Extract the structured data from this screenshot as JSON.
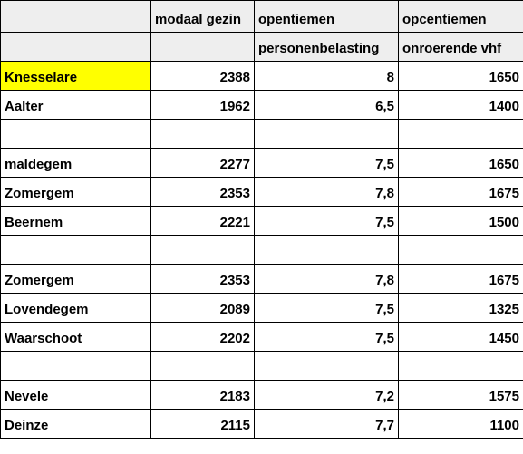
{
  "header_row1": [
    "",
    "modaal gezin",
    "opentiemen",
    "opcentiemen"
  ],
  "header_row2": [
    "",
    "",
    "personenbelasting",
    "onroerende vhf"
  ],
  "rows": [
    {
      "name": "Knesselare",
      "modaal": "2388",
      "pb": "8",
      "ovhf": "1650",
      "highlight": true
    },
    {
      "name": "Aalter",
      "modaal": "1962",
      "pb": "6,5",
      "ovhf": "1400"
    },
    {
      "name": "",
      "modaal": "",
      "pb": "",
      "ovhf": ""
    },
    {
      "name": "maldegem",
      "modaal": "2277",
      "pb": "7,5",
      "ovhf": "1650"
    },
    {
      "name": "Zomergem",
      "modaal": "2353",
      "pb": "7,8",
      "ovhf": "1675"
    },
    {
      "name": "Beernem",
      "modaal": "2221",
      "pb": "7,5",
      "ovhf": "1500"
    },
    {
      "name": "",
      "modaal": "",
      "pb": "",
      "ovhf": ""
    },
    {
      "name": "Zomergem",
      "modaal": "2353",
      "pb": "7,8",
      "ovhf": "1675"
    },
    {
      "name": "Lovendegem",
      "modaal": "2089",
      "pb": "7,5",
      "ovhf": "1325"
    },
    {
      "name": "Waarschoot",
      "modaal": "2202",
      "pb": "7,5",
      "ovhf": "1450"
    },
    {
      "name": "",
      "modaal": "",
      "pb": "",
      "ovhf": ""
    },
    {
      "name": "Nevele",
      "modaal": "2183",
      "pb": "7,2",
      "ovhf": "1575"
    },
    {
      "name": "Deinze",
      "modaal": "2115",
      "pb": "7,7",
      "ovhf": "1100"
    }
  ],
  "colors": {
    "header_fill": "#eeeeee",
    "highlight_fill": "#ffff00",
    "grid_line": "#000000"
  }
}
